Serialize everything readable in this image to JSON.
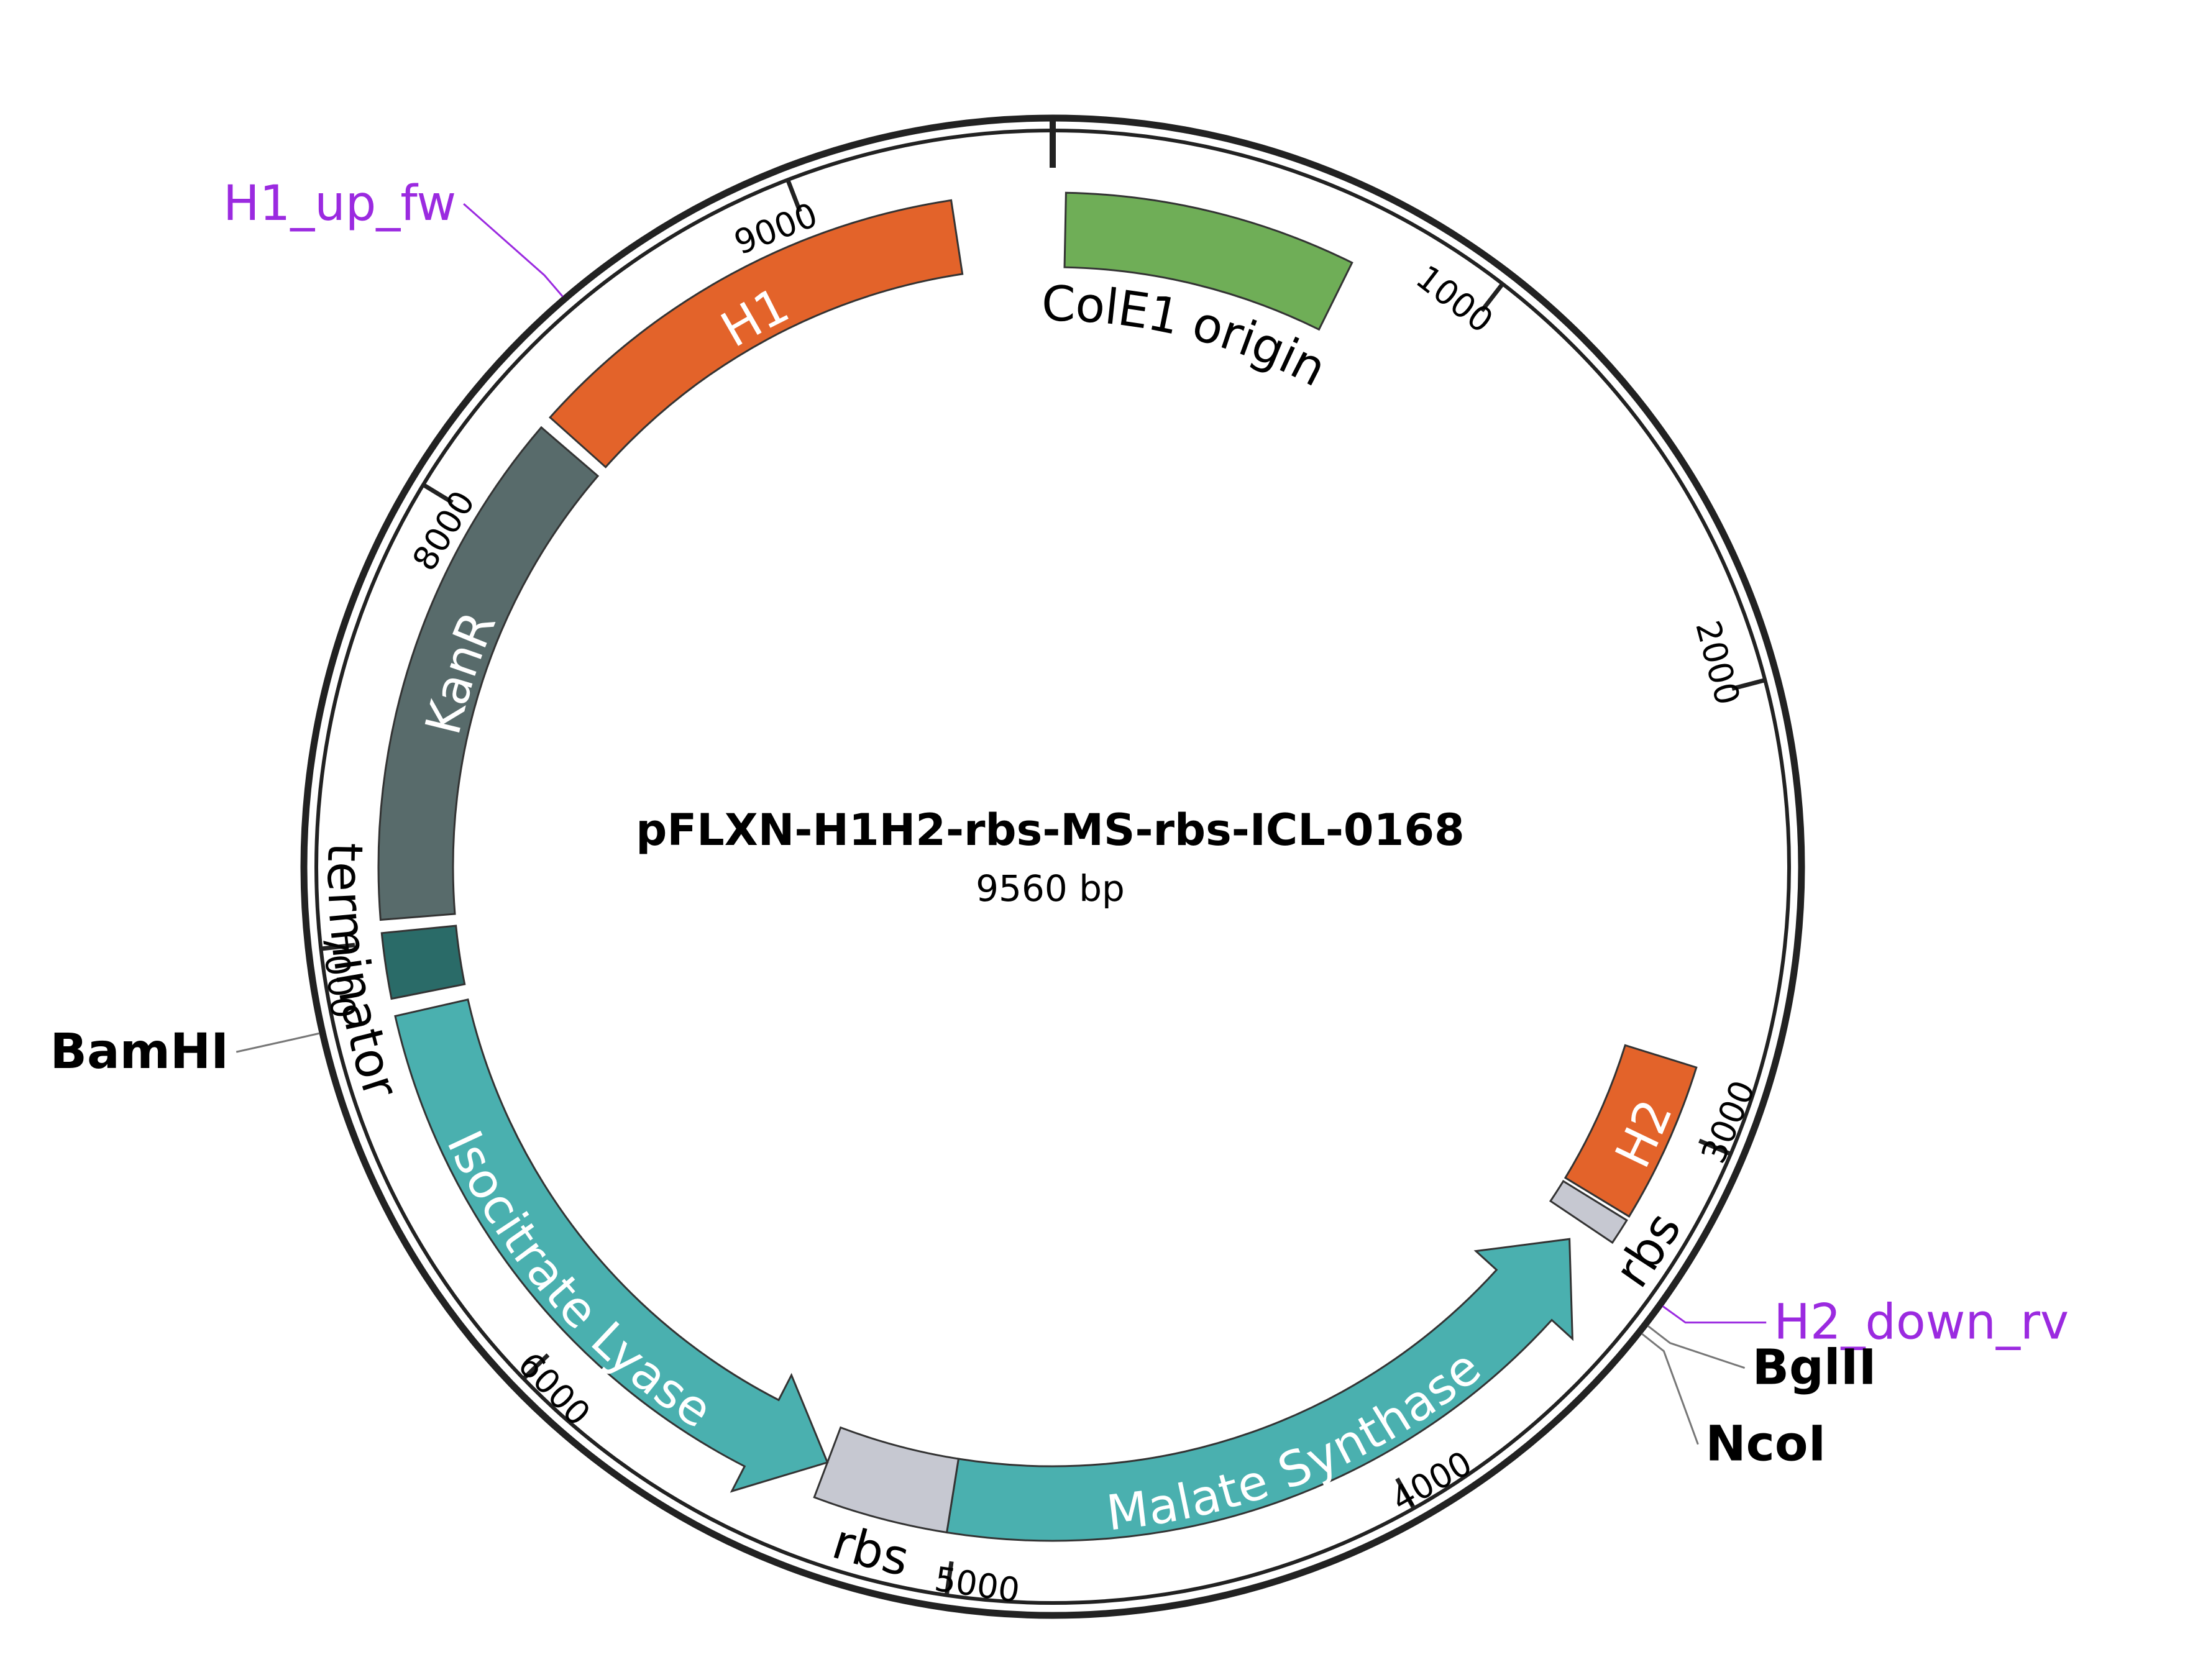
{
  "plasmid": {
    "name": "pFLXN-H1H2-rbs-MS-rbs-ICL-0168",
    "size_label": "9560 bp",
    "length_bp": 9560
  },
  "ticks": [
    {
      "bp": 1000,
      "label": "1000"
    },
    {
      "bp": 2000,
      "label": "2000"
    },
    {
      "bp": 3000,
      "label": "3000"
    },
    {
      "bp": 4000,
      "label": "4000"
    },
    {
      "bp": 5000,
      "label": "5000"
    },
    {
      "bp": 6000,
      "label": "6000"
    },
    {
      "bp": 7000,
      "label": "7000"
    },
    {
      "bp": 8000,
      "label": "8000"
    },
    {
      "bp": 9000,
      "label": "9000"
    }
  ],
  "features": [
    {
      "id": "cole1-origin",
      "label": "ColE1 origin",
      "start": 30,
      "end": 700,
      "color": "#6fae57",
      "direction": "none",
      "label_style": "outside"
    },
    {
      "id": "h2",
      "label": "H2",
      "start": 2850,
      "end": 3220,
      "color": "#e3632a",
      "direction": "none",
      "label_style": "inside"
    },
    {
      "id": "rbs-1",
      "label": "rbs",
      "start": 3230,
      "end": 3290,
      "color": "#c6c8d1",
      "direction": "none",
      "label_style": "outside"
    },
    {
      "id": "malate-synthase",
      "label": "Malate Synthase",
      "start": 3340,
      "end": 5020,
      "color": "#4ab0af",
      "direction": "reverse",
      "label_style": "inside"
    },
    {
      "id": "rbs-2",
      "label": "rbs",
      "start": 5020,
      "end": 5330,
      "color": "#c6c8d1",
      "direction": "none",
      "label_style": "outside"
    },
    {
      "id": "isocitrate-lyase",
      "label": "Isocitrate Lyase",
      "start": 5330,
      "end": 6830,
      "color": "#4ab0af",
      "direction": "reverse",
      "label_style": "inside"
    },
    {
      "id": "terminator",
      "label": "terminator",
      "start": 6870,
      "end": 7020,
      "color": "#2a6b68",
      "direction": "none",
      "label_style": "outside"
    },
    {
      "id": "kanr",
      "label": "KanR",
      "start": 7050,
      "end": 8250,
      "color": "#586b6b",
      "direction": "none",
      "label_style": "inside"
    },
    {
      "id": "h1",
      "label": "H1",
      "start": 8280,
      "end": 9330,
      "color": "#e3632a",
      "direction": "none",
      "label_style": "inside"
    }
  ],
  "primers": [
    {
      "id": "h1-up-fw",
      "label": "H1_up_fw",
      "bp": 8480,
      "color": "#9b2ae0"
    },
    {
      "id": "h2-down-rv",
      "label": "H2_down_rv",
      "bp": 3340,
      "color": "#9b2ae0"
    }
  ],
  "sites": [
    {
      "id": "bamhi",
      "label": "BamHI",
      "bp": 6830
    },
    {
      "id": "bglii",
      "label": "BglII",
      "bp": 3390
    },
    {
      "id": "ncoi",
      "label": "NcoI",
      "bp": 3410
    }
  ]
}
